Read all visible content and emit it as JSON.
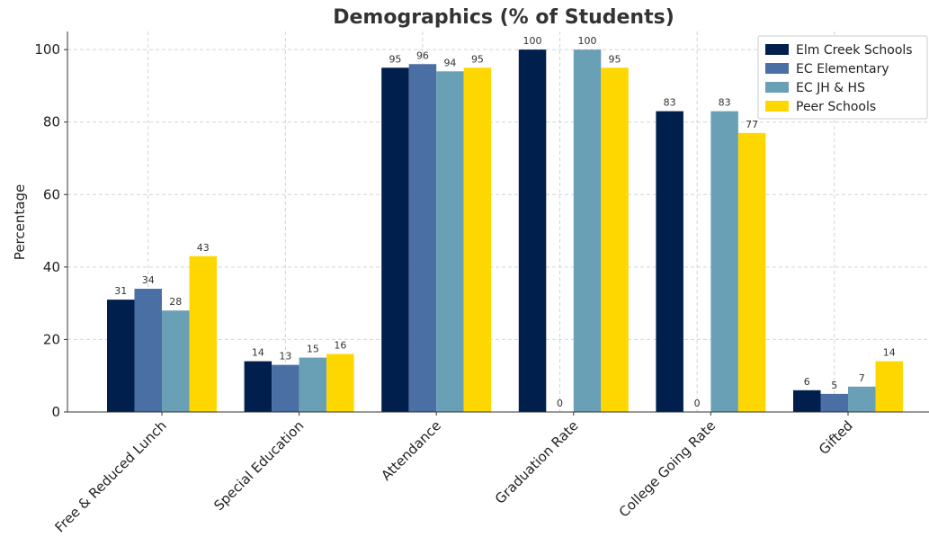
{
  "chart_data": {
    "type": "bar",
    "title": "Demographics (% of Students)",
    "xlabel": "",
    "ylabel": "Percentage",
    "ylim": [
      0,
      105
    ],
    "yticks": [
      0,
      20,
      40,
      60,
      80,
      100
    ],
    "grid": true,
    "legend_position": "top-right",
    "categories": [
      "Free & Reduced Lunch",
      "Special Education",
      "Attendance",
      "Graduation Rate",
      "College Going Rate",
      "Gifted"
    ],
    "series": [
      {
        "name": "Elm Creek Schools",
        "color": "#001f4d",
        "values": [
          31,
          14,
          95,
          100,
          83,
          6
        ]
      },
      {
        "name": "EC Elementary",
        "color": "#4a6fa5",
        "values": [
          34,
          13,
          96,
          0,
          0,
          5
        ]
      },
      {
        "name": "EC JH & HS",
        "color": "#6aa0b6",
        "values": [
          28,
          15,
          94,
          100,
          83,
          7
        ]
      },
      {
        "name": "Peer Schools",
        "color": "#ffd700",
        "values": [
          43,
          16,
          95,
          95,
          77,
          14
        ]
      }
    ]
  }
}
